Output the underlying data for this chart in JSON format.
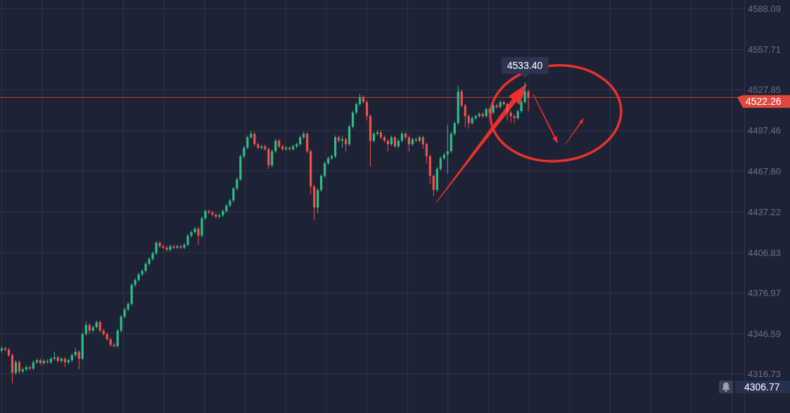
{
  "chart_data": {
    "type": "candlestick",
    "categories": [
      null,
      null,
      null,
      null,
      null,
      null,
      null,
      null,
      null,
      null,
      null,
      null,
      null,
      null,
      null,
      null,
      null,
      null,
      null,
      null,
      null,
      null,
      null,
      null,
      null,
      null,
      null,
      null,
      null,
      null,
      null,
      null,
      null,
      null,
      null,
      null,
      null,
      null,
      null,
      null,
      null,
      null,
      null,
      null,
      null,
      null,
      null,
      null,
      null,
      null,
      null,
      null,
      null,
      null,
      null,
      null,
      null,
      null,
      null,
      null,
      null,
      null,
      null,
      null,
      null,
      null,
      null,
      null,
      null,
      null,
      null,
      null,
      null,
      null,
      null,
      null,
      null,
      null,
      null,
      null,
      null,
      null,
      null,
      null,
      null,
      null,
      null,
      null,
      null,
      null,
      null,
      null,
      null,
      null,
      null,
      null,
      null,
      null,
      null,
      null,
      null,
      null,
      null,
      null,
      null,
      null,
      null,
      null,
      null,
      null,
      null,
      null,
      null,
      null,
      null,
      null,
      null,
      null,
      null,
      null,
      null,
      null,
      null,
      null,
      null,
      null,
      null,
      null,
      null,
      null,
      null,
      null,
      null,
      null,
      null,
      null,
      null,
      null,
      null,
      null,
      null,
      null,
      null,
      null,
      null,
      null,
      null,
      null,
      null,
      null,
      null,
      null,
      null,
      null,
      null,
      null,
      null,
      null,
      null,
      null,
      null,
      null,
      null,
      null,
      null,
      null,
      null,
      null,
      null,
      null,
      null,
      null,
      null,
      null,
      null,
      null,
      null,
      null,
      null,
      null,
      null,
      null,
      null,
      null,
      null,
      null,
      null,
      null,
      null,
      null,
      null,
      null,
      null,
      null,
      null,
      null,
      null,
      null,
      null,
      null,
      null,
      null,
      null,
      null,
      null,
      null,
      null,
      null,
      null,
      null,
      null,
      null
    ],
    "ohlc": [
      [
        4334.0,
        4337.1,
        4332.7,
        4335.8
      ],
      [
        4335.8,
        4337.0,
        4333.5,
        4334.8
      ],
      [
        4334.8,
        4336.0,
        4329.3,
        4330.6
      ],
      [
        4330.6,
        4331.9,
        4309.7,
        4317.5
      ],
      [
        4317.5,
        4327.0,
        4316.0,
        4325.4
      ],
      [
        4325.4,
        4326.7,
        4316.5,
        4318.6
      ],
      [
        4318.6,
        4321.5,
        4317.2,
        4320.1
      ],
      [
        4320.1,
        4323.0,
        4318.8,
        4321.7
      ],
      [
        4321.7,
        4323.0,
        4319.4,
        4320.7
      ],
      [
        4320.7,
        4326.7,
        4319.5,
        4325.4
      ],
      [
        4325.4,
        4328.2,
        4324.1,
        4326.9
      ],
      [
        4326.9,
        4328.2,
        4323.5,
        4324.8
      ],
      [
        4324.8,
        4327.7,
        4323.5,
        4326.4
      ],
      [
        4326.4,
        4327.7,
        4324.1,
        4325.4
      ],
      [
        4325.4,
        4329.3,
        4324.1,
        4328.0
      ],
      [
        4328.0,
        4333.2,
        4326.7,
        4329.0
      ],
      [
        4329.0,
        4330.3,
        4325.1,
        4326.4
      ],
      [
        4326.4,
        4329.3,
        4325.1,
        4328.0
      ],
      [
        4328.0,
        4329.3,
        4322.0,
        4325.4
      ],
      [
        4325.4,
        4328.2,
        4324.1,
        4326.9
      ],
      [
        4326.9,
        4332.0,
        4325.6,
        4330.6
      ],
      [
        4330.6,
        4336.0,
        4329.3,
        4333.2
      ],
      [
        4333.2,
        4334.5,
        4320.1,
        4328.0
      ],
      [
        4328.0,
        4348.0,
        4326.7,
        4346.3
      ],
      [
        4346.3,
        4355.5,
        4345.0,
        4353.1
      ],
      [
        4353.1,
        4354.4,
        4346.5,
        4348.9
      ],
      [
        4348.9,
        4352.8,
        4347.6,
        4351.5
      ],
      [
        4351.5,
        4356.5,
        4350.2,
        4355.2
      ],
      [
        4355.2,
        4356.5,
        4347.6,
        4348.9
      ],
      [
        4348.9,
        4350.2,
        4345.0,
        4346.3
      ],
      [
        4346.3,
        4347.6,
        4341.3,
        4342.6
      ],
      [
        4342.6,
        4343.9,
        4337.1,
        4338.4
      ],
      [
        4338.4,
        4339.7,
        4336.4,
        4337.4
      ],
      [
        4337.4,
        4350.2,
        4336.1,
        4348.9
      ],
      [
        4348.9,
        4360.6,
        4347.6,
        4359.3
      ],
      [
        4359.3,
        4366.0,
        4358.0,
        4364.6
      ],
      [
        4364.6,
        4370.0,
        4363.3,
        4368.7
      ],
      [
        4368.7,
        4384.2,
        4367.4,
        4382.9
      ],
      [
        4382.9,
        4387.8,
        4381.6,
        4386.5
      ],
      [
        4386.5,
        4392.0,
        4385.2,
        4390.7
      ],
      [
        4390.7,
        4394.6,
        4389.4,
        4393.3
      ],
      [
        4393.3,
        4399.8,
        4392.0,
        4398.5
      ],
      [
        4398.5,
        4403.5,
        4397.2,
        4402.2
      ],
      [
        4402.2,
        4407.7,
        4400.9,
        4406.4
      ],
      [
        4406.4,
        4415.5,
        4405.1,
        4414.2
      ],
      [
        4414.2,
        4415.5,
        4410.3,
        4411.6
      ],
      [
        4411.6,
        4412.9,
        4409.3,
        4410.6
      ],
      [
        4410.6,
        4411.9,
        4407.7,
        4409.0
      ],
      [
        4409.0,
        4412.9,
        4407.7,
        4411.6
      ],
      [
        4411.6,
        4412.9,
        4409.3,
        4410.6
      ],
      [
        4410.6,
        4412.9,
        4409.3,
        4411.6
      ],
      [
        4411.6,
        4412.9,
        4409.3,
        4410.6
      ],
      [
        4410.6,
        4414.0,
        4409.3,
        4412.7
      ],
      [
        4412.7,
        4420.8,
        4411.4,
        4419.5
      ],
      [
        4419.5,
        4423.4,
        4418.2,
        4422.1
      ],
      [
        4422.1,
        4426.0,
        4420.8,
        4424.7
      ],
      [
        4424.7,
        4426.0,
        4412.7,
        4419.5
      ],
      [
        4419.5,
        4433.8,
        4418.2,
        4432.5
      ],
      [
        4432.5,
        4439.0,
        4431.2,
        4437.7
      ],
      [
        4437.7,
        4439.0,
        4435.4,
        4436.7
      ],
      [
        4436.7,
        4438.0,
        4433.8,
        4435.1
      ],
      [
        4435.1,
        4436.4,
        4432.3,
        4433.6
      ],
      [
        4433.6,
        4435.9,
        4432.3,
        4434.6
      ],
      [
        4434.6,
        4439.0,
        4433.3,
        4437.7
      ],
      [
        4437.7,
        4443.2,
        4436.4,
        4441.9
      ],
      [
        4441.9,
        4446.9,
        4440.6,
        4445.6
      ],
      [
        4445.6,
        4455.8,
        4444.3,
        4454.5
      ],
      [
        4454.5,
        4462.6,
        4453.2,
        4461.3
      ],
      [
        4461.3,
        4479.8,
        4460.0,
        4478.5
      ],
      [
        4478.5,
        4486.1,
        4477.2,
        4484.8
      ],
      [
        4484.8,
        4493.9,
        4483.5,
        4492.6
      ],
      [
        4492.6,
        4497.3,
        4491.3,
        4495.2
      ],
      [
        4495.2,
        4496.5,
        4486.1,
        4487.4
      ],
      [
        4487.4,
        4488.7,
        4483.5,
        4484.8
      ],
      [
        4484.8,
        4487.1,
        4483.5,
        4485.8
      ],
      [
        4485.8,
        4487.1,
        4482.5,
        4483.8
      ],
      [
        4483.8,
        4485.1,
        4469.1,
        4471.7
      ],
      [
        4471.7,
        4483.5,
        4470.4,
        4482.2
      ],
      [
        4482.2,
        4491.3,
        4480.9,
        4490.0
      ],
      [
        4490.0,
        4491.3,
        4484.5,
        4485.8
      ],
      [
        4485.8,
        4487.1,
        4482.5,
        4483.8
      ],
      [
        4483.8,
        4486.1,
        4482.5,
        4484.8
      ],
      [
        4484.8,
        4486.1,
        4482.5,
        4483.8
      ],
      [
        4483.8,
        4487.1,
        4482.5,
        4485.8
      ],
      [
        4485.8,
        4488.7,
        4484.5,
        4487.4
      ],
      [
        4487.4,
        4493.9,
        4486.1,
        4492.6
      ],
      [
        4492.6,
        4496.8,
        4491.3,
        4495.2
      ],
      [
        4495.2,
        4496.5,
        4480.9,
        4482.2
      ],
      [
        4482.2,
        4483.5,
        4450.0,
        4456.0
      ],
      [
        4456.0,
        4457.3,
        4431.0,
        4440.4
      ],
      [
        4440.4,
        4454.7,
        4436.0,
        4453.4
      ],
      [
        4453.4,
        4465.2,
        4452.1,
        4463.9
      ],
      [
        4463.9,
        4474.6,
        4462.6,
        4473.3
      ],
      [
        4473.3,
        4478.3,
        4472.0,
        4477.0
      ],
      [
        4477.0,
        4479.8,
        4475.7,
        4478.5
      ],
      [
        4478.5,
        4493.9,
        4477.2,
        4492.6
      ],
      [
        4492.6,
        4493.9,
        4488.7,
        4490.0
      ],
      [
        4490.0,
        4494.0,
        4485.0,
        4491.1
      ],
      [
        4491.1,
        4492.4,
        4482.0,
        4487.4
      ],
      [
        4487.4,
        4501.8,
        4486.1,
        4500.5
      ],
      [
        4500.5,
        4512.2,
        4499.2,
        4510.9
      ],
      [
        4510.9,
        4518.5,
        4509.6,
        4517.2
      ],
      [
        4517.2,
        4525.0,
        4515.9,
        4522.4
      ],
      [
        4522.4,
        4523.7,
        4517.5,
        4518.8
      ],
      [
        4518.8,
        4520.1,
        4505.0,
        4508.3
      ],
      [
        4508.3,
        4509.6,
        4470.7,
        4490.0
      ],
      [
        4490.0,
        4496.5,
        4488.7,
        4495.2
      ],
      [
        4495.2,
        4498.0,
        4493.9,
        4496.3
      ],
      [
        4496.3,
        4497.6,
        4491.3,
        4492.6
      ],
      [
        4492.6,
        4493.9,
        4488.7,
        4490.0
      ],
      [
        4490.0,
        4491.3,
        4482.0,
        4487.4
      ],
      [
        4487.4,
        4493.9,
        4486.1,
        4492.6
      ],
      [
        4492.6,
        4493.9,
        4484.5,
        4485.8
      ],
      [
        4485.8,
        4491.3,
        4484.5,
        4490.0
      ],
      [
        4490.0,
        4496.8,
        4488.7,
        4495.2
      ],
      [
        4495.2,
        4496.5,
        4491.3,
        4492.6
      ],
      [
        4492.6,
        4493.9,
        4482.0,
        4487.4
      ],
      [
        4487.4,
        4492.4,
        4486.1,
        4491.1
      ],
      [
        4491.1,
        4492.4,
        4488.7,
        4490.0
      ],
      [
        4490.0,
        4493.9,
        4488.7,
        4492.6
      ],
      [
        4492.6,
        4493.9,
        4484.0,
        4487.4
      ],
      [
        4487.4,
        4488.7,
        4473.0,
        4478.5
      ],
      [
        4478.5,
        4479.8,
        4458.0,
        4463.9
      ],
      [
        4463.9,
        4465.2,
        4448.7,
        4453.4
      ],
      [
        4453.4,
        4470.4,
        4452.1,
        4469.1
      ],
      [
        4469.1,
        4478.3,
        4467.8,
        4477.0
      ],
      [
        4477.0,
        4480.9,
        4475.7,
        4479.6
      ],
      [
        4479.6,
        4502.0,
        4465.5,
        4482.2
      ],
      [
        4482.2,
        4496.5,
        4480.9,
        4495.2
      ],
      [
        4495.2,
        4504.4,
        4493.9,
        4503.1
      ],
      [
        4503.1,
        4530.8,
        4501.8,
        4526.6
      ],
      [
        4526.6,
        4527.9,
        4514.9,
        4516.2
      ],
      [
        4516.2,
        4517.5,
        4500.0,
        4508.3
      ],
      [
        4508.3,
        4509.6,
        4499.0,
        4503.1
      ],
      [
        4503.1,
        4508.1,
        4501.8,
        4506.8
      ],
      [
        4506.8,
        4509.6,
        4505.5,
        4508.3
      ],
      [
        4508.3,
        4511.2,
        4507.0,
        4509.9
      ],
      [
        4509.9,
        4511.2,
        4507.0,
        4508.3
      ],
      [
        4508.3,
        4514.8,
        4507.0,
        4513.5
      ],
      [
        4513.5,
        4514.8,
        4509.6,
        4510.9
      ],
      [
        4510.9,
        4517.5,
        4509.6,
        4516.2
      ],
      [
        4516.2,
        4517.5,
        4513.8,
        4515.1
      ],
      [
        4515.1,
        4520.1,
        4513.8,
        4518.8
      ],
      [
        4518.8,
        4520.1,
        4515.9,
        4517.2
      ],
      [
        4517.2,
        4518.5,
        4505.0,
        4510.9
      ],
      [
        4510.9,
        4512.2,
        4503.5,
        4508.3
      ],
      [
        4508.3,
        4509.6,
        4503.0,
        4506.8
      ],
      [
        4506.8,
        4513.3,
        4505.5,
        4512.0
      ],
      [
        4512.0,
        4520.1,
        4510.7,
        4518.8
      ],
      [
        4518.8,
        4533.4,
        4517.5,
        4526.6
      ],
      [
        4526.6,
        4527.9,
        4512.0,
        4522.26
      ],
      null,
      null,
      null,
      null,
      null,
      null,
      null,
      null,
      null,
      null,
      null,
      null,
      null,
      null,
      null,
      null,
      null,
      null,
      null,
      null,
      null,
      null,
      null,
      null,
      null,
      null,
      null,
      null,
      null,
      null,
      null,
      null,
      null,
      null,
      null,
      null,
      null,
      null,
      null,
      null,
      null,
      null,
      null,
      null,
      null,
      null,
      null,
      null,
      null,
      null,
      null,
      null,
      null,
      null,
      null,
      null,
      null,
      null,
      null,
      null,
      null
    ],
    "colors": [
      "#2ebd85",
      "#f0524a",
      "#f0524a",
      "#f0524a",
      "#2ebd85",
      "#f0524a",
      "#2ebd85",
      "#2ebd85",
      "#f0524a",
      "#2ebd85",
      "#2ebd85",
      "#f0524a",
      "#2ebd85",
      "#f0524a",
      "#2ebd85",
      "#2ebd85",
      "#f0524a",
      "#2ebd85",
      "#f0524a",
      "#2ebd85",
      "#2ebd85",
      "#2ebd85",
      "#f0524a",
      "#2ebd85",
      "#2ebd85",
      "#f0524a",
      "#2ebd85",
      "#2ebd85",
      "#f0524a",
      "#f0524a",
      "#f0524a",
      "#f0524a",
      "#f0524a",
      "#2ebd85",
      "#2ebd85",
      "#2ebd85",
      "#2ebd85",
      "#2ebd85",
      "#2ebd85",
      "#2ebd85",
      "#2ebd85",
      "#2ebd85",
      "#2ebd85",
      "#2ebd85",
      "#2ebd85",
      "#f0524a",
      "#f0524a",
      "#f0524a",
      "#2ebd85",
      "#f0524a",
      "#2ebd85",
      "#f0524a",
      "#2ebd85",
      "#2ebd85",
      "#2ebd85",
      "#2ebd85",
      "#f0524a",
      "#2ebd85",
      "#2ebd85",
      "#f0524a",
      "#f0524a",
      "#f0524a",
      "#2ebd85",
      "#2ebd85",
      "#2ebd85",
      "#2ebd85",
      "#2ebd85",
      "#2ebd85",
      "#2ebd85",
      "#2ebd85",
      "#2ebd85",
      "#2ebd85",
      "#f0524a",
      "#f0524a",
      "#2ebd85",
      "#f0524a",
      "#f0524a",
      "#2ebd85",
      "#2ebd85",
      "#f0524a",
      "#f0524a",
      "#2ebd85",
      "#f0524a",
      "#2ebd85",
      "#2ebd85",
      "#2ebd85",
      "#2ebd85",
      "#f0524a",
      "#f0524a",
      "#f0524a",
      "#2ebd85",
      "#2ebd85",
      "#2ebd85",
      "#2ebd85",
      "#2ebd85",
      "#2ebd85",
      "#f0524a",
      "#2ebd85",
      "#f0524a",
      "#2ebd85",
      "#2ebd85",
      "#2ebd85",
      "#2ebd85",
      "#f0524a",
      "#f0524a",
      "#f0524a",
      "#2ebd85",
      "#2ebd85",
      "#f0524a",
      "#f0524a",
      "#f0524a",
      "#2ebd85",
      "#f0524a",
      "#2ebd85",
      "#2ebd85",
      "#f0524a",
      "#f0524a",
      "#2ebd85",
      "#f0524a",
      "#2ebd85",
      "#f0524a",
      "#f0524a",
      "#f0524a",
      "#f0524a",
      "#2ebd85",
      "#2ebd85",
      "#2ebd85",
      "#2ebd85",
      "#2ebd85",
      "#2ebd85",
      "#2ebd85",
      "#f0524a",
      "#f0524a",
      "#f0524a",
      "#2ebd85",
      "#2ebd85",
      "#2ebd85",
      "#f0524a",
      "#2ebd85",
      "#f0524a",
      "#2ebd85",
      "#f0524a",
      "#2ebd85",
      "#f0524a",
      "#f0524a",
      "#f0524a",
      "#f0524a",
      "#2ebd85",
      "#2ebd85",
      "#2ebd85",
      "#f0524a",
      null,
      null,
      null,
      null,
      null,
      null,
      null,
      null,
      null,
      null,
      null,
      null,
      null,
      null,
      null,
      null,
      null,
      null,
      null,
      null,
      null,
      null,
      null,
      null,
      null,
      null,
      null,
      null,
      null,
      null,
      null,
      null,
      null,
      null,
      null,
      null,
      null,
      null,
      null,
      null,
      null,
      null,
      null,
      null,
      null,
      null,
      null,
      null,
      null,
      null,
      null,
      null,
      null,
      null,
      null,
      null,
      null,
      null,
      null,
      null,
      null
    ],
    "ylim": [
      4287.7,
      4594.6
    ],
    "yticks": [
      4316.73,
      4346.59,
      4376.97,
      4406.83,
      4437.22,
      {
        "value": 4467.6,
        "label": "4467.60"
      },
      4497.46,
      4527.85,
      4557.71,
      4588.09
    ],
    "grid": true,
    "tick_labels": "y",
    "ref_lines": [
      {
        "axis": "y",
        "value": 4522.26,
        "label": "4522.26",
        "color": "#e0473f"
      }
    ],
    "annotations": [
      "4533.40",
      "4306.77"
    ]
  }
}
